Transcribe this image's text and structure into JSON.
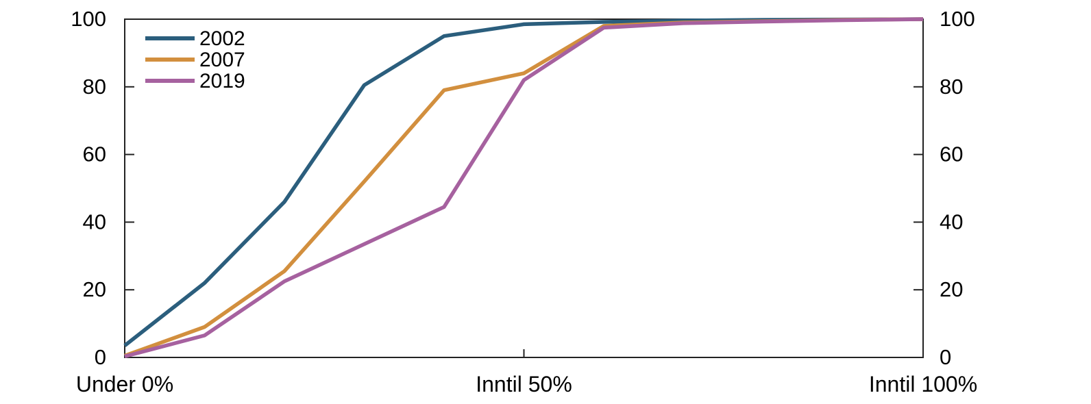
{
  "chart_data": {
    "type": "line",
    "title": "",
    "xlabel": "",
    "ylabel": "",
    "background": "#ffffff",
    "axis_color": "#222222",
    "text_color": "#000000",
    "grid": false,
    "legend_position": "top-left",
    "x_axis": {
      "num_points": 11,
      "tick_labels": [
        {
          "index": 0,
          "label": "Under 0%"
        },
        {
          "index": 5,
          "label": "Inntil 50%"
        },
        {
          "index": 10,
          "label": "Inntil 100%"
        }
      ]
    },
    "y_axis": {
      "range": [
        0,
        100
      ],
      "ticks": [
        0,
        20,
        40,
        60,
        80,
        100
      ],
      "sides": "both"
    },
    "series": [
      {
        "name": "2002",
        "color": "#2b5e7d",
        "values": [
          3.5,
          22,
          46,
          80.5,
          95,
          98.5,
          99.2,
          99.6,
          99.8,
          99.9,
          100
        ]
      },
      {
        "name": "2007",
        "color": "#d28f3e",
        "values": [
          0.5,
          9,
          25.5,
          52,
          79,
          84,
          98,
          99,
          99.4,
          99.8,
          100
        ]
      },
      {
        "name": "2019",
        "color": "#a6619f",
        "values": [
          0.3,
          6.5,
          22.5,
          33.5,
          44.5,
          82,
          97.5,
          98.8,
          99.3,
          99.7,
          100
        ]
      }
    ]
  },
  "layout_note": ""
}
